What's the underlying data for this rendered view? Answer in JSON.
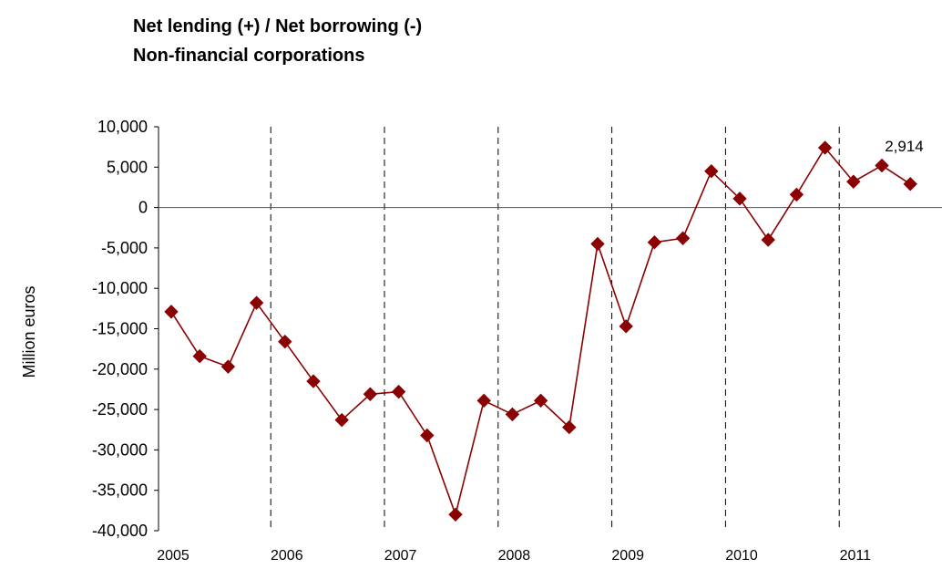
{
  "chart_data": {
    "type": "line",
    "title": "Net lending (+) / Net borrowing (-)",
    "subtitle": "Non-financial corporations",
    "ylabel": "Million euros",
    "xlabel": "",
    "ylim": [
      -40000,
      10000
    ],
    "yticks": [
      10000,
      5000,
      0,
      -5000,
      -10000,
      -15000,
      -20000,
      -25000,
      -30000,
      -35000,
      -40000
    ],
    "ytick_labels": [
      "10,000",
      "5,000",
      "0",
      "-5,000",
      "-10,000",
      "-15,000",
      "-20,000",
      "-25,000",
      "-30,000",
      "-35,000",
      "-40,000"
    ],
    "year_labels": [
      "2005",
      "2006",
      "2007",
      "2008",
      "2009",
      "2010",
      "2011"
    ],
    "quarters": [
      "2005Q1",
      "2005Q2",
      "2005Q3",
      "2005Q4",
      "2006Q1",
      "2006Q2",
      "2006Q3",
      "2006Q4",
      "2007Q1",
      "2007Q2",
      "2007Q3",
      "2007Q4",
      "2008Q1",
      "2008Q2",
      "2008Q3",
      "2008Q4",
      "2009Q1",
      "2009Q2",
      "2009Q3",
      "2009Q4",
      "2010Q1",
      "2010Q2",
      "2010Q3",
      "2010Q4",
      "2011Q1",
      "2011Q2",
      "2011Q3"
    ],
    "values": [
      -12900,
      -18400,
      -19700,
      -11800,
      -16600,
      -21500,
      -26300,
      -23100,
      -22800,
      -28200,
      -38000,
      -23900,
      -25600,
      -23900,
      -27200,
      -4500,
      -14700,
      -4300,
      -3800,
      4500,
      1100,
      -4000,
      1600,
      7400,
      3200,
      5200,
      2914
    ],
    "last_value_label": "2,914",
    "year_separators": "dashed vertical line at each year boundary",
    "zero_line": true,
    "series_color": "#8b0000",
    "marker": "diamond",
    "legend": "none"
  }
}
